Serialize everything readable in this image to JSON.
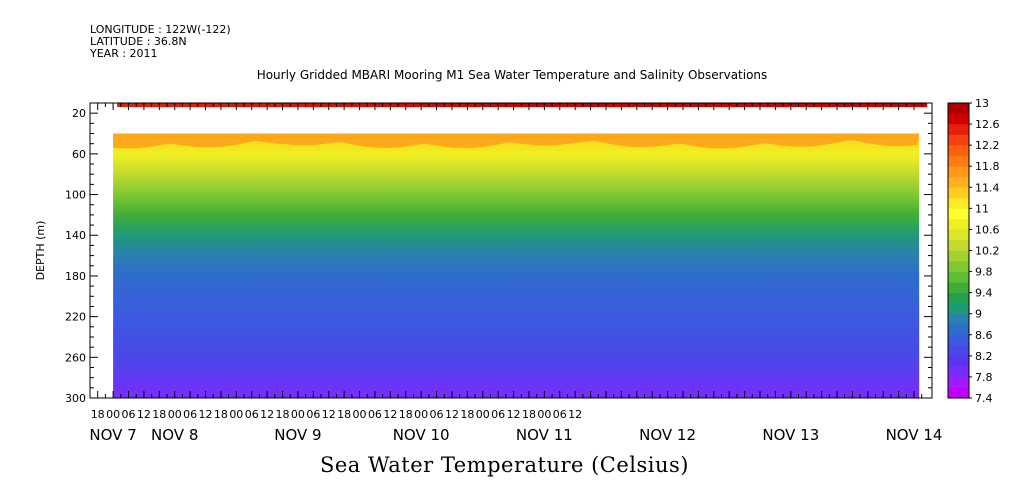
{
  "header": {
    "longitude": "LONGITUDE : 122W(-122)",
    "latitude": "LATITUDE : 36.8N",
    "year": "YEAR : 2011"
  },
  "chart_data": {
    "type": "heatmap",
    "title": "Hourly Gridded MBARI Mooring M1 Sea Water Temperature and Salinity Observations",
    "xlabel": "Sea Water Temperature (Celsius)",
    "ylabel": "DEPTH (m)",
    "ylim": [
      300,
      10
    ],
    "y_ticks": [
      20,
      60,
      100,
      140,
      180,
      220,
      260,
      300
    ],
    "x_hour_labels": [
      "18",
      "00",
      "06",
      "12",
      "18",
      "00",
      "06",
      "12",
      "18",
      "00",
      "06",
      "12",
      "18",
      "00",
      "06",
      "12",
      "18",
      "00",
      "06",
      "12",
      "18",
      "00",
      "06",
      "12",
      "18",
      "00",
      "06",
      "12",
      "18",
      "00",
      "06",
      "12"
    ],
    "x_day_labels": [
      {
        "label": "NOV  7",
        "hour": 0
      },
      {
        "label": "NOV  8",
        "hour": 24
      },
      {
        "label": "NOV  9",
        "hour": 72
      },
      {
        "label": "NOV 10",
        "hour": 120
      },
      {
        "label": "NOV 11",
        "hour": 168
      },
      {
        "label": "NOV 12",
        "hour": 216
      },
      {
        "label": "NOV 13",
        "hour": 264
      },
      {
        "label": "NOV 14",
        "hour": 312
      }
    ],
    "x_range_hours": [
      -9,
      319
    ],
    "data_x_range_hours": [
      0,
      314
    ],
    "surface_layer": {
      "depth_range": [
        10,
        14
      ],
      "value": 12.4
    },
    "profile_top_depth": 40,
    "depth_profile": [
      {
        "depth": 40,
        "value": 11.2
      },
      {
        "depth": 60,
        "value": 10.6
      },
      {
        "depth": 80,
        "value": 10.2
      },
      {
        "depth": 100,
        "value": 9.9
      },
      {
        "depth": 120,
        "value": 9.5
      },
      {
        "depth": 140,
        "value": 9.1
      },
      {
        "depth": 160,
        "value": 8.9
      },
      {
        "depth": 180,
        "value": 8.7
      },
      {
        "depth": 220,
        "value": 8.5
      },
      {
        "depth": 260,
        "value": 8.2
      },
      {
        "depth": 300,
        "value": 7.9
      }
    ],
    "colorbar": {
      "levels": [
        7.4,
        7.6,
        7.8,
        8,
        8.2,
        8.4,
        8.6,
        8.8,
        9,
        9.2,
        9.4,
        9.6,
        9.8,
        10,
        10.2,
        10.4,
        10.6,
        10.8,
        11,
        11.2,
        11.4,
        11.6,
        11.8,
        12,
        12.2,
        12.4,
        12.6,
        12.8,
        13
      ],
      "labels": [
        "7.4",
        "7.8",
        "8.2",
        "8.6",
        "9",
        "9.4",
        "9.8",
        "10.2",
        "10.6",
        "11",
        "11.4",
        "11.8",
        "12.2",
        "12.6",
        "13"
      ],
      "colors": [
        "#c000ff",
        "#a01cff",
        "#7a2cff",
        "#5a36f4",
        "#4848e8",
        "#3c5ae0",
        "#2f6ccc",
        "#2a80b0",
        "#1f9a78",
        "#22a050",
        "#40ad38",
        "#5ebd34",
        "#80c832",
        "#a2d232",
        "#c2da30",
        "#dce628",
        "#f0f020",
        "#ffff30",
        "#ffe828",
        "#ffcc20",
        "#ffb020",
        "#ff9818",
        "#ff7a14",
        "#ff6010",
        "#f84010",
        "#e82008",
        "#d00000",
        "#b00000"
      ]
    }
  }
}
